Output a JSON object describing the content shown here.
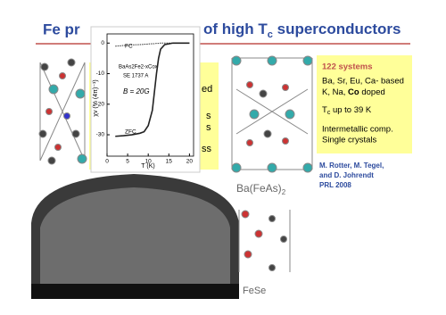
{
  "header": {
    "title_left": "Fe pr",
    "title_right": "of high T",
    "title_sub": "c",
    "title_end": " superconductors"
  },
  "occluded_box": {
    "lines": [
      "ed",
      "s",
      "s",
      "ss"
    ]
  },
  "info_box": {
    "heading": "122 systems",
    "line1": "Ba, Sr, Eu, Ca- based",
    "line2_pre": "K, Na, ",
    "line2_bold": "Co",
    "line2_post": " doped",
    "tc_pre": "T",
    "tc_sub": "c",
    "tc_post": " up to 39 K",
    "line4": "Intermetallic comp.",
    "line5": "Single crystals"
  },
  "reference": {
    "lines": [
      "M. Rotter, M. Tegel,",
      "and D. Johrendt",
      "PRL 2008"
    ]
  },
  "structure_labels": {
    "ba_main": "Ba(FeAs)",
    "ba_sub": "2",
    "fese": "FeSe"
  },
  "chart_data": {
    "type": "line",
    "x_label": "T (K)",
    "y_label": "χv (% (4π)⁻¹)",
    "annotations": [
      "BaAs2Fe2-xCox",
      "SE 1737 A",
      "B = 20G"
    ],
    "x": [
      2,
      4,
      6,
      8,
      9,
      10,
      11,
      11.5,
      12,
      12.5,
      13,
      14,
      16,
      18,
      20
    ],
    "series": [
      {
        "name": "FC",
        "color": "#333333",
        "values": [
          -1,
          -0.8,
          -0.6,
          -0.5,
          -0.4,
          -0.3,
          -0.2,
          -0.2,
          -0.1,
          -0.1,
          0,
          0,
          0,
          0,
          0
        ]
      },
      {
        "name": "ZFC",
        "color": "#222222",
        "values": [
          -30.5,
          -30.3,
          -30,
          -29.5,
          -29,
          -27,
          -22,
          -16,
          -10,
          -5,
          -2,
          -0.5,
          0,
          0,
          0
        ]
      }
    ],
    "xlim": [
      0,
      21
    ],
    "ylim": [
      -37,
      3
    ],
    "xticks": [
      0,
      5,
      10,
      15,
      20
    ],
    "yticks": [
      0,
      -10,
      -20,
      -30
    ]
  }
}
